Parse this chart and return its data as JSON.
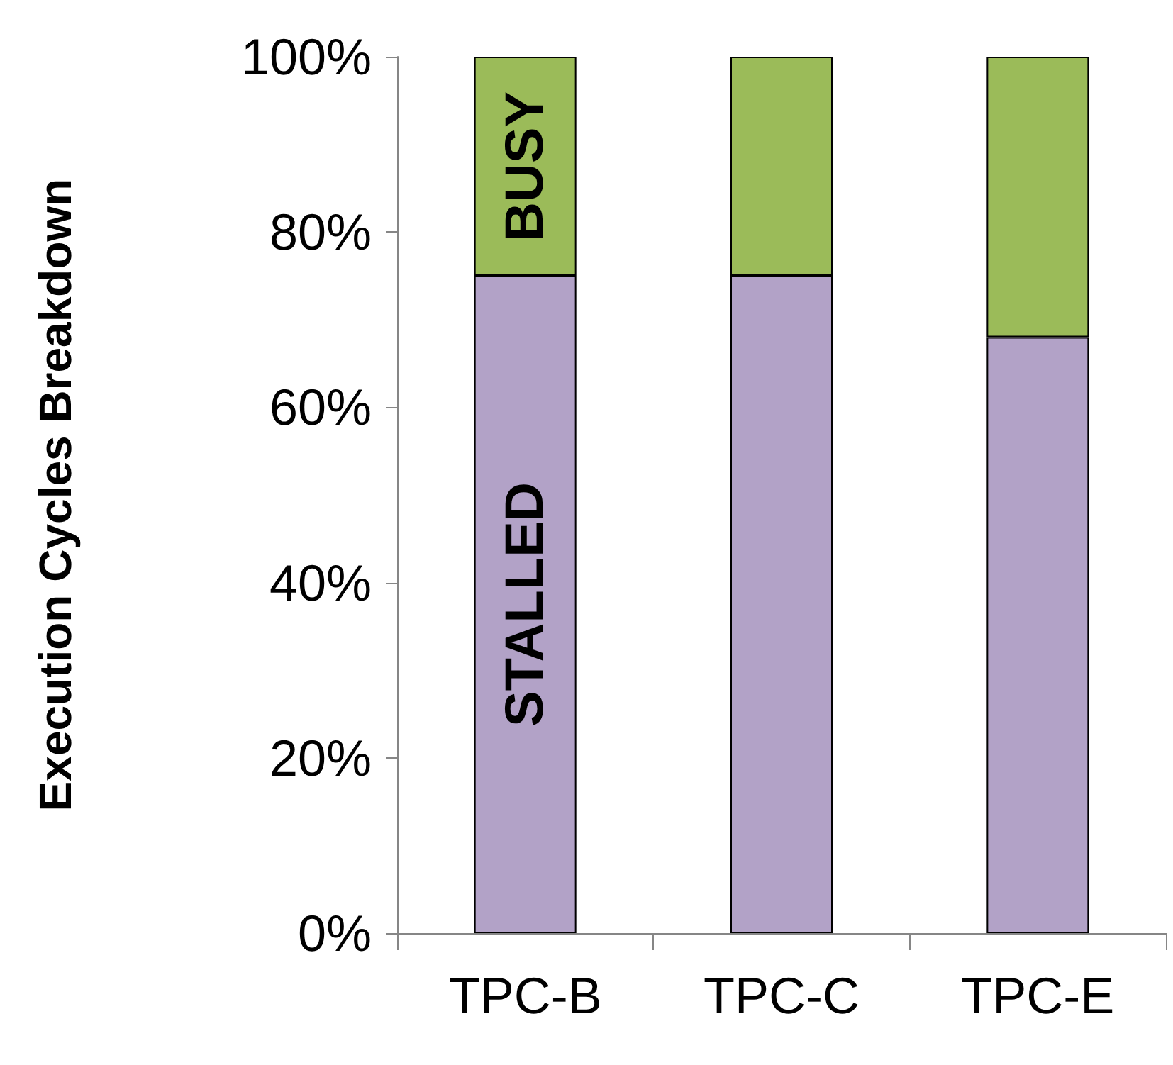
{
  "chart_data": {
    "type": "bar",
    "stacked": true,
    "ylabel": "Execution Cycles Breakdown",
    "categories": [
      "TPC-B",
      "TPC-C",
      "TPC-E"
    ],
    "series": [
      {
        "name": "STALLED",
        "color": "#b2a2c7",
        "values": [
          75,
          75,
          68
        ]
      },
      {
        "name": "BUSY",
        "color": "#9bbb59",
        "values": [
          25,
          25,
          32
        ]
      }
    ],
    "ylim": [
      0,
      100
    ],
    "yticks": [
      {
        "value": 0,
        "label": "0%"
      },
      {
        "value": 20,
        "label": "20%"
      },
      {
        "value": 40,
        "label": "40%"
      },
      {
        "value": 60,
        "label": "60%"
      },
      {
        "value": 80,
        "label": "80%"
      },
      {
        "value": 100,
        "label": "100%"
      }
    ],
    "grid": false,
    "legend": false
  }
}
